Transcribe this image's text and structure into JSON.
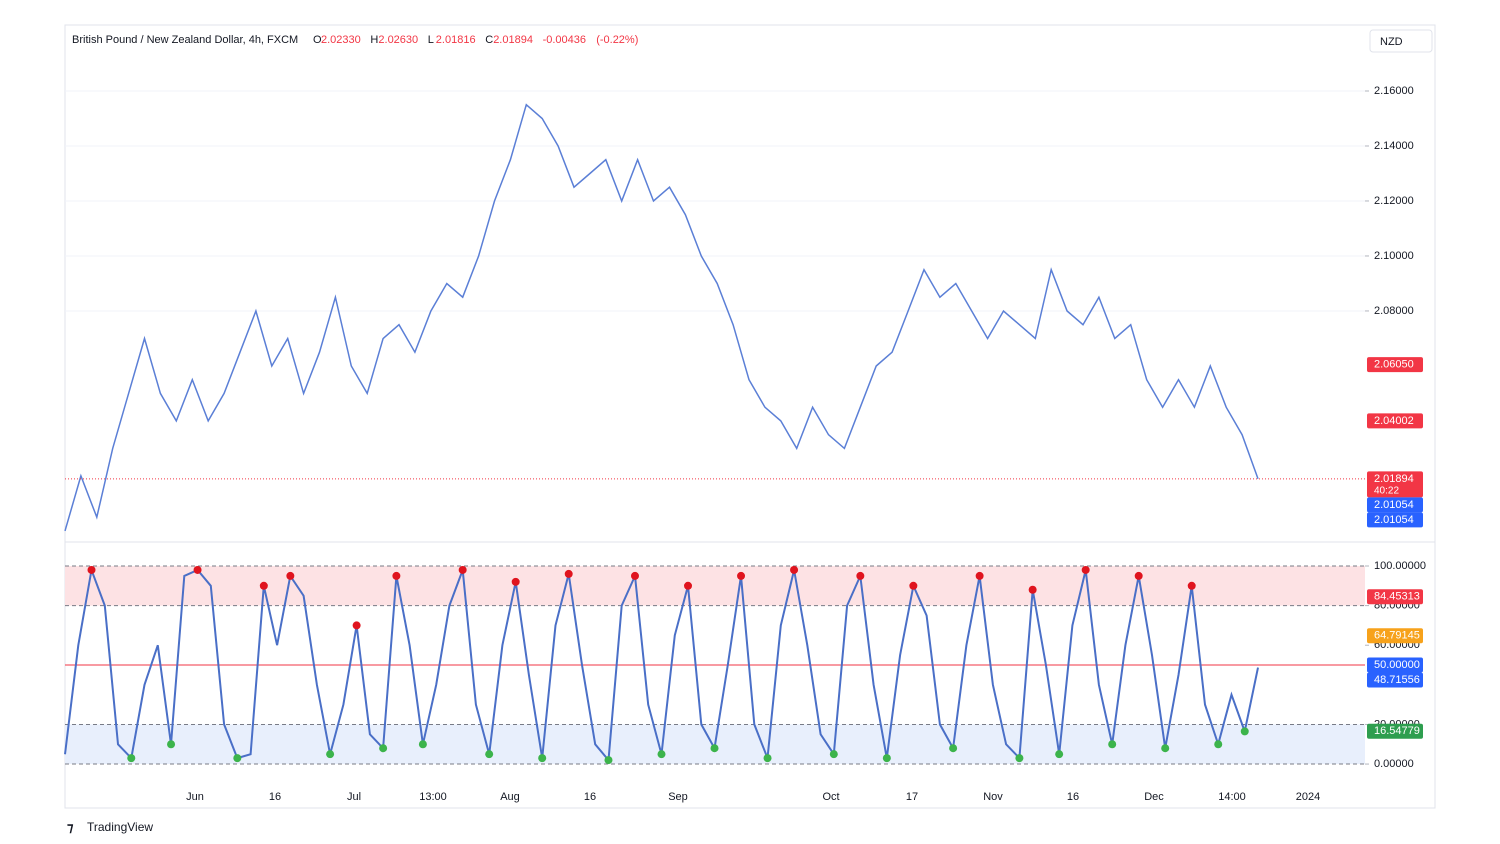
{
  "header": {
    "title": "British Pound / New Zealand Dollar, 4h, FXCM",
    "ohlc": [
      {
        "key": "O",
        "value": 2.0233,
        "label": "2.02330"
      },
      {
        "key": "H",
        "value": 2.0263,
        "label": "2.02630"
      },
      {
        "key": "L",
        "value": 2.01816,
        "label": "2.01816"
      },
      {
        "key": "C",
        "value": 2.01894,
        "label": "2.01894"
      }
    ],
    "change": {
      "value": -0.00436,
      "label": "-0.00436"
    },
    "change_pct": {
      "value": -0.22,
      "label": "(-0.22%)"
    }
  },
  "currency": "NZD",
  "footer": "TradingView",
  "x_labels": [
    "Jun",
    "16",
    "Jul",
    "13:00",
    "Aug",
    "16",
    "Sep",
    "Oct",
    "17",
    "Nov",
    "16",
    "Dec",
    "14:00",
    "2024"
  ],
  "chart_data": [
    {
      "type": "line",
      "color": "#5b7fd6",
      "values": [
        2.0,
        2.02,
        2.005,
        2.03,
        2.05,
        2.07,
        2.05,
        2.04,
        2.055,
        2.04,
        2.05,
        2.065,
        2.08,
        2.06,
        2.07,
        2.05,
        2.065,
        2.085,
        2.06,
        2.05,
        2.07,
        2.075,
        2.065,
        2.08,
        2.09,
        2.085,
        2.1,
        2.12,
        2.135,
        2.155,
        2.15,
        2.14,
        2.125,
        2.13,
        2.135,
        2.12,
        2.135,
        2.12,
        2.125,
        2.115,
        2.1,
        2.09,
        2.075,
        2.055,
        2.045,
        2.04,
        2.03,
        2.045,
        2.035,
        2.03,
        2.045,
        2.06,
        2.065,
        2.08,
        2.095,
        2.085,
        2.09,
        2.08,
        2.07,
        2.08,
        2.075,
        2.07,
        2.095,
        2.08,
        2.075,
        2.085,
        2.07,
        2.075,
        2.055,
        2.045,
        2.055,
        2.045,
        2.06,
        2.045,
        2.035,
        2.01894
      ],
      "ylim": [
        1.9967,
        2.184
      ],
      "yticks": [
        {
          "value": 2.16,
          "label": "2.16000"
        },
        {
          "value": 2.14,
          "label": "2.14000"
        },
        {
          "value": 2.12,
          "label": "2.12000"
        },
        {
          "value": 2.1,
          "label": "2.10000"
        },
        {
          "value": 2.08,
          "label": "2.08000"
        }
      ],
      "grid": true,
      "badges": [
        {
          "value": 2.0605,
          "label": "2.06050",
          "color": "#f23645"
        },
        {
          "value": 2.04002,
          "label": "2.04002",
          "color": "#f23645"
        },
        {
          "value": 2.01894,
          "label": "2.01894",
          "sub": "40:22",
          "color": "#f23645"
        },
        {
          "value": 2.01054,
          "label": "2.01054",
          "color": "#2962ff"
        },
        {
          "value": 2.01054,
          "label": "2.01054",
          "color": "#2962ff"
        }
      ]
    },
    {
      "type": "line",
      "color": "#4a6fc7",
      "values": [
        5,
        60,
        98,
        80,
        10,
        3,
        40,
        60,
        10,
        95,
        98,
        90,
        20,
        3,
        5,
        90,
        60,
        95,
        85,
        40,
        5,
        30,
        70,
        15,
        8,
        95,
        60,
        10,
        40,
        80,
        98,
        30,
        5,
        60,
        92,
        45,
        3,
        70,
        96,
        50,
        10,
        2,
        80,
        95,
        30,
        5,
        65,
        90,
        20,
        8,
        50,
        95,
        20,
        3,
        70,
        98,
        60,
        15,
        5,
        80,
        95,
        40,
        3,
        55,
        90,
        75,
        20,
        8,
        60,
        95,
        40,
        10,
        3,
        88,
        50,
        5,
        70,
        98,
        40,
        10,
        60,
        95,
        55,
        8,
        45,
        90,
        30,
        10,
        35,
        16.5,
        48.7
      ],
      "ylim": [
        -3,
        110.6
      ],
      "yticks": [
        {
          "value": 100,
          "label": "100.00000"
        },
        {
          "value": 80,
          "label": "80.00000"
        },
        {
          "value": 60,
          "label": "60.00000"
        },
        {
          "value": 20,
          "label": "20.00000"
        },
        {
          "value": 0,
          "label": "0.00000"
        }
      ],
      "grid": true,
      "bands": [
        {
          "from": 80,
          "to": 100,
          "color": "#fde2e4"
        },
        {
          "from": 0,
          "to": 20,
          "color": "#e8effc"
        }
      ],
      "midline": 50,
      "badges": [
        {
          "value": 84.45313,
          "label": "84.45313",
          "color": "#f23645"
        },
        {
          "value": 64.79145,
          "label": "64.79145",
          "color": "#f7a21b"
        },
        {
          "value": 50,
          "label": "50.00000",
          "color": "#2962ff"
        },
        {
          "value": 48.71556,
          "label": "48.71556",
          "color": "#2962ff"
        },
        {
          "value": 16.54779,
          "label": "16.54779",
          "color": "#2e9e4f"
        }
      ]
    }
  ]
}
